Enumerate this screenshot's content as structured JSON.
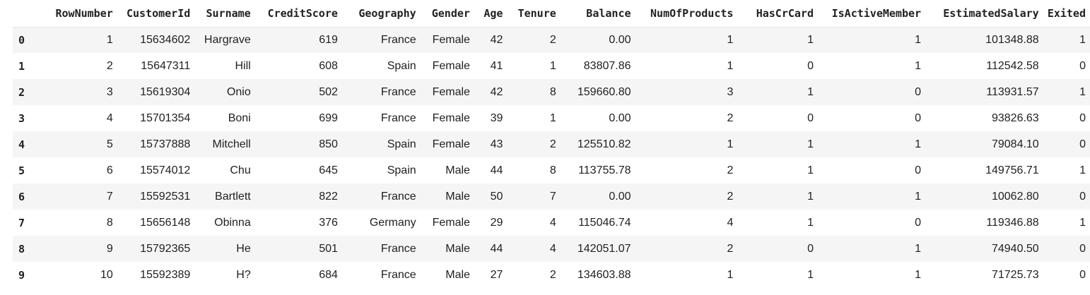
{
  "table": {
    "index_header": "",
    "columns": [
      "RowNumber",
      "CustomerId",
      "Surname",
      "CreditScore",
      "Geography",
      "Gender",
      "Age",
      "Tenure",
      "Balance",
      "NumOfProducts",
      "HasCrCard",
      "IsActiveMember",
      "EstimatedSalary",
      "Exited"
    ],
    "rows": [
      {
        "index": "0",
        "cells": [
          "1",
          "15634602",
          "Hargrave",
          "619",
          "France",
          "Female",
          "42",
          "2",
          "0.00",
          "1",
          "1",
          "1",
          "101348.88",
          "1"
        ]
      },
      {
        "index": "1",
        "cells": [
          "2",
          "15647311",
          "Hill",
          "608",
          "Spain",
          "Female",
          "41",
          "1",
          "83807.86",
          "1",
          "0",
          "1",
          "112542.58",
          "0"
        ]
      },
      {
        "index": "2",
        "cells": [
          "3",
          "15619304",
          "Onio",
          "502",
          "France",
          "Female",
          "42",
          "8",
          "159660.80",
          "3",
          "1",
          "0",
          "113931.57",
          "1"
        ]
      },
      {
        "index": "3",
        "cells": [
          "4",
          "15701354",
          "Boni",
          "699",
          "France",
          "Female",
          "39",
          "1",
          "0.00",
          "2",
          "0",
          "0",
          "93826.63",
          "0"
        ]
      },
      {
        "index": "4",
        "cells": [
          "5",
          "15737888",
          "Mitchell",
          "850",
          "Spain",
          "Female",
          "43",
          "2",
          "125510.82",
          "1",
          "1",
          "1",
          "79084.10",
          "0"
        ]
      },
      {
        "index": "5",
        "cells": [
          "6",
          "15574012",
          "Chu",
          "645",
          "Spain",
          "Male",
          "44",
          "8",
          "113755.78",
          "2",
          "1",
          "0",
          "149756.71",
          "1"
        ]
      },
      {
        "index": "6",
        "cells": [
          "7",
          "15592531",
          "Bartlett",
          "822",
          "France",
          "Male",
          "50",
          "7",
          "0.00",
          "2",
          "1",
          "1",
          "10062.80",
          "0"
        ]
      },
      {
        "index": "7",
        "cells": [
          "8",
          "15656148",
          "Obinna",
          "376",
          "Germany",
          "Female",
          "29",
          "4",
          "115046.74",
          "4",
          "1",
          "0",
          "119346.88",
          "1"
        ]
      },
      {
        "index": "8",
        "cells": [
          "9",
          "15792365",
          "He",
          "501",
          "France",
          "Male",
          "44",
          "4",
          "142051.07",
          "2",
          "0",
          "1",
          "74940.50",
          "0"
        ]
      },
      {
        "index": "9",
        "cells": [
          "10",
          "15592389",
          "H?",
          "684",
          "France",
          "Male",
          "27",
          "2",
          "134603.88",
          "1",
          "1",
          "1",
          "71725.73",
          "0"
        ]
      }
    ],
    "colors": {
      "stripe": "#f5f5f5",
      "text": "#212121",
      "header_rule": "#e6e6e6"
    }
  }
}
